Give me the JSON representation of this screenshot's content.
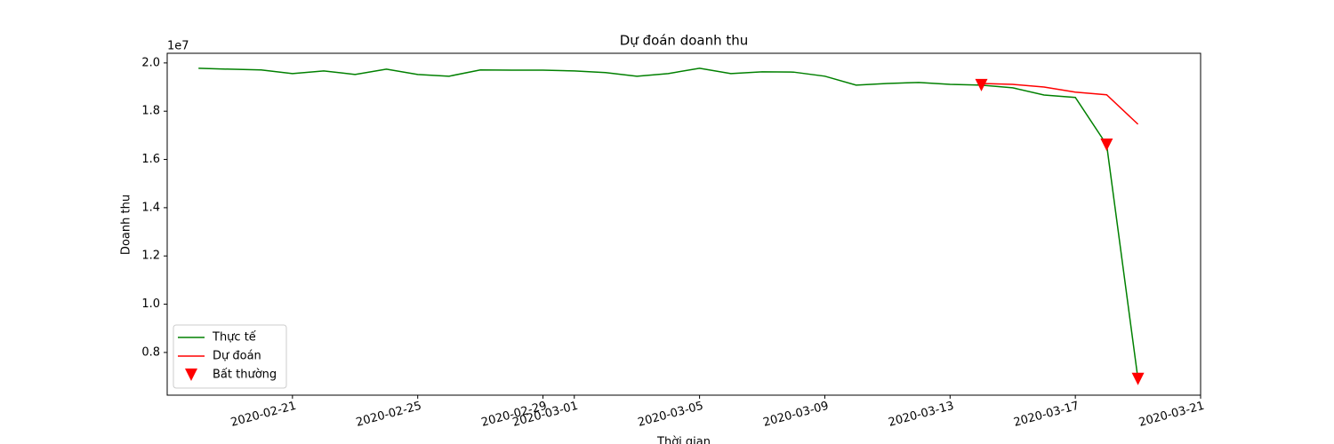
{
  "chart_data": {
    "type": "line",
    "title": "Dự đoán doanh thu",
    "xlabel": "Thời gian",
    "ylabel": "Doanh thu",
    "y_offset_label": "1e7",
    "xlim": [
      "2020-02-17",
      "2020-03-21"
    ],
    "xticks": [
      "2020-02-21",
      "2020-02-25",
      "2020-02-29",
      "2020-03-01",
      "2020-03-05",
      "2020-03-09",
      "2020-03-13",
      "2020-03-17",
      "2020-03-21"
    ],
    "ylim": [
      0.623,
      2.04
    ],
    "yticks": [
      0.8,
      {
        "value": 1.0,
        "label": "1.0"
      },
      1.2,
      1.4,
      1.6,
      1.8,
      {
        "value": 2.0,
        "label": "2.0"
      }
    ],
    "legend": "lower left",
    "series": [
      {
        "name": "Thực tế",
        "color": "green",
        "kind": "line",
        "x": [
          "2020-02-18",
          "2020-02-19",
          "2020-02-20",
          "2020-02-21",
          "2020-02-22",
          "2020-02-23",
          "2020-02-24",
          "2020-02-25",
          "2020-02-26",
          "2020-02-27",
          "2020-02-28",
          "2020-02-29",
          "2020-03-01",
          "2020-03-02",
          "2020-03-03",
          "2020-03-04",
          "2020-03-05",
          "2020-03-06",
          "2020-03-07",
          "2020-03-08",
          "2020-03-09",
          "2020-03-10",
          "2020-03-11",
          "2020-03-12",
          "2020-03-13",
          "2020-03-14",
          "2020-03-15",
          "2020-03-16",
          "2020-03-17",
          "2020-03-18",
          "2020-03-19"
        ],
        "values": [
          1.978,
          1.974,
          1.971,
          1.956,
          1.967,
          1.952,
          1.974,
          1.952,
          1.945,
          1.971,
          1.97,
          1.97,
          1.967,
          1.96,
          1.945,
          1.956,
          1.978,
          1.956,
          1.963,
          1.962,
          1.945,
          1.908,
          1.915,
          1.919,
          1.911,
          1.908,
          1.897,
          1.867,
          1.857,
          1.661,
          0.69
        ]
      },
      {
        "name": "Dự đoán",
        "color": "red",
        "kind": "line",
        "x": [
          "2020-03-14",
          "2020-03-15",
          "2020-03-16",
          "2020-03-17",
          "2020-03-18",
          "2020-03-19"
        ],
        "values": [
          1.915,
          1.911,
          1.9,
          1.879,
          1.868,
          1.746
        ]
      },
      {
        "name": "Bất thường",
        "color": "red",
        "kind": "triangle",
        "x": [
          "2020-03-14",
          "2020-03-18",
          "2020-03-19"
        ],
        "values": [
          1.908,
          1.661,
          0.69
        ]
      }
    ]
  }
}
